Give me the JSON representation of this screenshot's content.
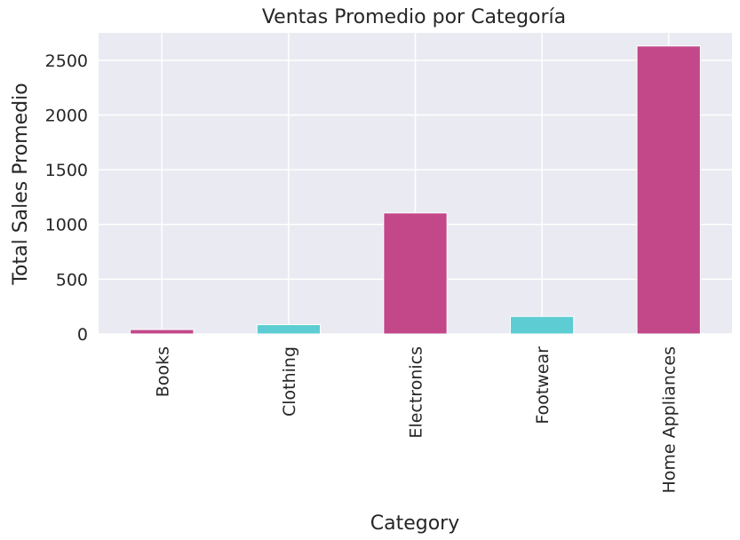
{
  "chart_data": {
    "type": "bar",
    "title": "Ventas Promedio por Categoría",
    "xlabel": "Category",
    "ylabel": "Total Sales Promedio",
    "categories": [
      "Books",
      "Clothing",
      "Electronics",
      "Footwear",
      "Home Appliances"
    ],
    "values": [
      40,
      85,
      1105,
      160,
      2630
    ],
    "bar_colors": [
      "#c2488a",
      "#5ecdd3",
      "#c2488a",
      "#5ecdd3",
      "#c2488a"
    ],
    "ylim": [
      0,
      2750
    ],
    "yticks": [
      0,
      500,
      1000,
      1500,
      2000,
      2500
    ],
    "grid": true,
    "background_color": "#eaeaf2",
    "grid_color": "#ffffff"
  }
}
